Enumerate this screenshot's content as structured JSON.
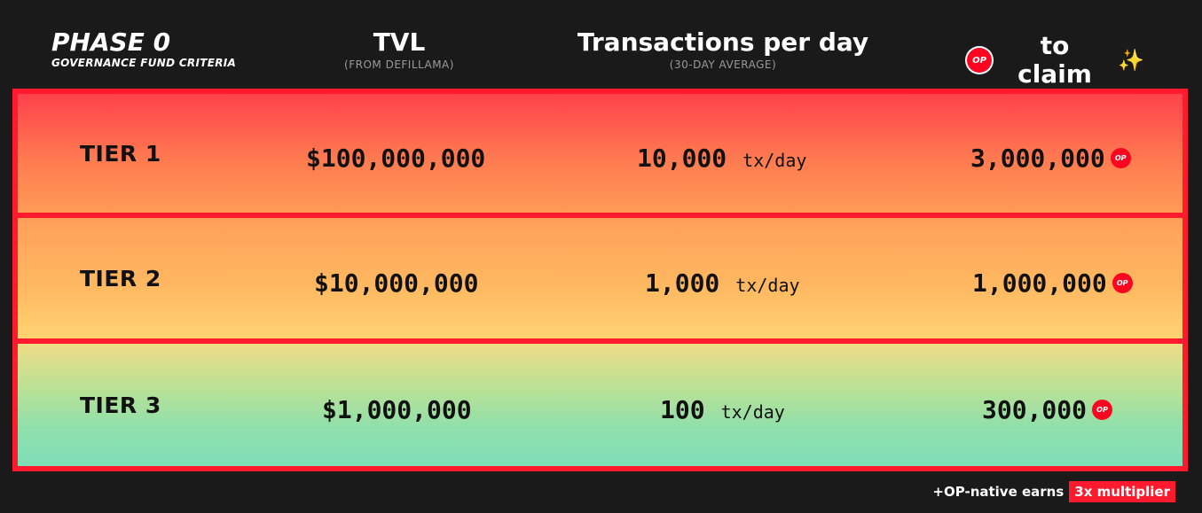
{
  "header": {
    "phase_title": "PHASE 0",
    "phase_subtitle": "GOVERNANCE FUND CRITERIA",
    "tvl_title": "TVL",
    "tvl_subtitle": "(FROM DEFILLAMA)",
    "tx_title": "Transactions per day",
    "tx_subtitle": "(30-DAY AVERAGE)",
    "claim_title": "to claim",
    "claim_sparkle": "✨",
    "op_badge": "OP"
  },
  "tiers": [
    {
      "label": "TIER 1",
      "tvl": "$100,000,000",
      "tx": "10,000",
      "tx_unit": "tx/day",
      "claim": "3,000,000"
    },
    {
      "label": "TIER 2",
      "tvl": "$10,000,000",
      "tx": "1,000",
      "tx_unit": "tx/day",
      "claim": "1,000,000"
    },
    {
      "label": "TIER 3",
      "tvl": "$1,000,000",
      "tx": "100",
      "tx_unit": "tx/day",
      "claim": "300,000"
    }
  ],
  "footer": {
    "text": "+OP-native earns",
    "multiplier": "3x multiplier"
  },
  "colors": {
    "accent_red": "#ff1a2e",
    "background": "#1a1a1a"
  }
}
